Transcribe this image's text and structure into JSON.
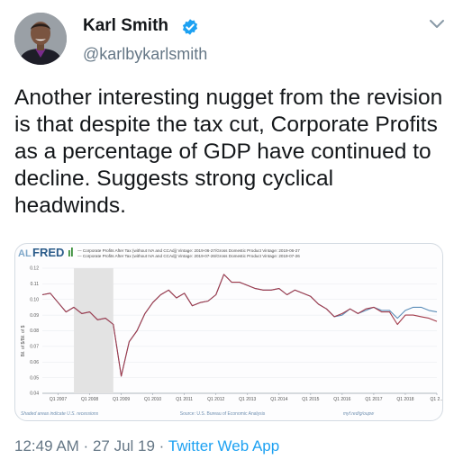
{
  "author": {
    "name": "Karl Smith",
    "handle": "@karlbykarlsmith",
    "verified": true
  },
  "tweet": {
    "text": "Another interesting nugget from the revision is that despite the tax cut, Corporate Profits as a percentage of GDP have continued to decline. Suggests strong cyclical headwinds."
  },
  "meta": {
    "time": "12:49 AM",
    "separator1": " · ",
    "date": "27 Jul 19",
    "separator2": " · ",
    "app": "Twitter Web App"
  },
  "fred": {
    "logo_prefix": "AL",
    "logo_main": "FRED",
    "legend": [
      "— Corporate Profits After Tax (without IVA and CCAdj) Vintage: 2019-06-27/Gross Domestic Product Vintage: 2019-06-27",
      "— Corporate Profits After Tax (without IVA and CCAdj) Vintage: 2019-07-26/Gross Domestic Product Vintage: 2019-07-26"
    ],
    "footer_left": "Shaded areas indicate U.S. recessions",
    "footer_center": "Source: U.S. Bureau of Economic Analysis",
    "footer_right": "myf.red/g/oupw"
  },
  "chart_data": {
    "type": "line",
    "ylabel": "Bil. of $/Bil. of $",
    "ylim": [
      0.04,
      0.12
    ],
    "yticks": [
      "0.12",
      "0.11",
      "0.10",
      "0.09",
      "0.08",
      "0.07",
      "0.06",
      "0.05",
      "0.04"
    ],
    "xticks": [
      "Q1 2007",
      "Q1 2008",
      "Q1 2009",
      "Q1 2010",
      "Q1 2011",
      "Q1 2012",
      "Q1 2013",
      "Q1 2014",
      "Q1 2015",
      "Q1 2016",
      "Q1 2017",
      "Q1 2018",
      "Q1 2..."
    ],
    "recession": [
      "2008 Q1",
      "2009 Q2"
    ],
    "colors": {
      "series1": "#5b8db8",
      "series2": "#a23a4a",
      "recession": "#e3e3e3"
    },
    "series": [
      {
        "values": [
          0.103,
          0.104,
          0.098,
          0.092,
          0.095,
          0.091,
          0.092,
          0.087,
          0.088,
          0.084,
          0.051,
          0.073,
          0.08,
          0.091,
          0.098,
          0.103,
          0.106,
          0.101,
          0.104,
          0.096,
          0.098,
          0.099,
          0.103,
          0.116,
          0.111,
          0.111,
          0.109,
          0.107,
          0.106,
          0.106,
          0.107,
          0.103,
          0.106,
          0.104,
          0.102,
          0.097,
          0.094,
          0.089,
          0.09,
          0.094,
          0.091,
          0.093,
          0.095,
          0.093,
          0.093,
          0.088,
          0.093,
          0.095,
          0.095,
          0.093,
          0.092
        ]
      },
      {
        "values": [
          0.103,
          0.104,
          0.098,
          0.092,
          0.095,
          0.091,
          0.092,
          0.087,
          0.088,
          0.084,
          0.051,
          0.073,
          0.08,
          0.091,
          0.098,
          0.103,
          0.106,
          0.101,
          0.104,
          0.096,
          0.098,
          0.099,
          0.103,
          0.116,
          0.111,
          0.111,
          0.109,
          0.107,
          0.106,
          0.106,
          0.107,
          0.103,
          0.106,
          0.104,
          0.102,
          0.097,
          0.094,
          0.089,
          0.091,
          0.094,
          0.091,
          0.094,
          0.095,
          0.092,
          0.092,
          0.084,
          0.09,
          0.09,
          0.089,
          0.088,
          0.086
        ]
      }
    ]
  }
}
